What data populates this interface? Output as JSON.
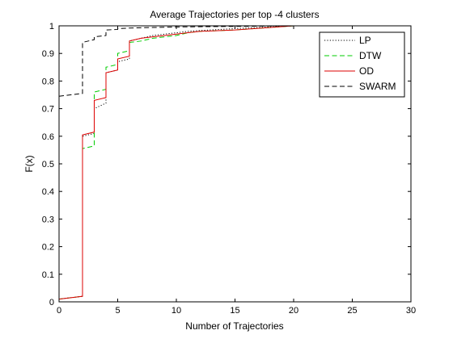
{
  "chart_data": {
    "type": "line",
    "title": "Average Trajectories per top -4 clusters",
    "xlabel": "Number of Trajectories",
    "ylabel": "F(x)",
    "xlim": [
      0,
      30
    ],
    "ylim": [
      0,
      1
    ],
    "xticks": [
      "0",
      "5",
      "10",
      "15",
      "20",
      "25",
      "30"
    ],
    "yticks": [
      "0",
      "0.1",
      "0.2",
      "0.3",
      "0.4",
      "0.5",
      "0.6",
      "0.7",
      "0.8",
      "0.9",
      "1"
    ],
    "grid": false,
    "legend_position": "top-right",
    "series": [
      {
        "name": "LP",
        "color": "#000000",
        "style": "dotted",
        "x": [
          0,
          2,
          2,
          3,
          3,
          4,
          4,
          5,
          5,
          6,
          6,
          7,
          8,
          9,
          10,
          11,
          12,
          15,
          20
        ],
        "y": [
          0.01,
          0.02,
          0.6,
          0.61,
          0.7,
          0.72,
          0.83,
          0.84,
          0.87,
          0.88,
          0.945,
          0.955,
          0.965,
          0.97,
          0.975,
          0.98,
          0.983,
          0.99,
          1.0
        ]
      },
      {
        "name": "DTW",
        "color": "#00cc00",
        "style": "dashed",
        "x": [
          0,
          2,
          2,
          3,
          3,
          4,
          4,
          5,
          5,
          6,
          6,
          7,
          8,
          9,
          10,
          11,
          12,
          15,
          20
        ],
        "y": [
          0.01,
          0.02,
          0.555,
          0.565,
          0.76,
          0.77,
          0.85,
          0.86,
          0.9,
          0.91,
          0.94,
          0.945,
          0.955,
          0.96,
          0.965,
          0.975,
          0.98,
          0.985,
          1.0
        ]
      },
      {
        "name": "OD",
        "color": "#dd0000",
        "style": "solid",
        "x": [
          0,
          2,
          2,
          3,
          3,
          4,
          4,
          5,
          5,
          6,
          6,
          7,
          8,
          9,
          10,
          11,
          12,
          15,
          20
        ],
        "y": [
          0.01,
          0.02,
          0.605,
          0.615,
          0.73,
          0.74,
          0.83,
          0.84,
          0.88,
          0.89,
          0.945,
          0.955,
          0.96,
          0.965,
          0.97,
          0.975,
          0.98,
          0.985,
          1.0
        ]
      },
      {
        "name": "SWARM",
        "color": "#000000",
        "style": "dashed",
        "x": [
          0,
          2,
          2,
          3,
          3,
          4,
          4,
          5,
          5,
          6,
          8,
          10,
          15,
          20
        ],
        "y": [
          0.745,
          0.755,
          0.94,
          0.95,
          0.96,
          0.965,
          0.985,
          0.987,
          0.99,
          0.992,
          0.994,
          0.996,
          0.998,
          1.0
        ]
      }
    ]
  }
}
